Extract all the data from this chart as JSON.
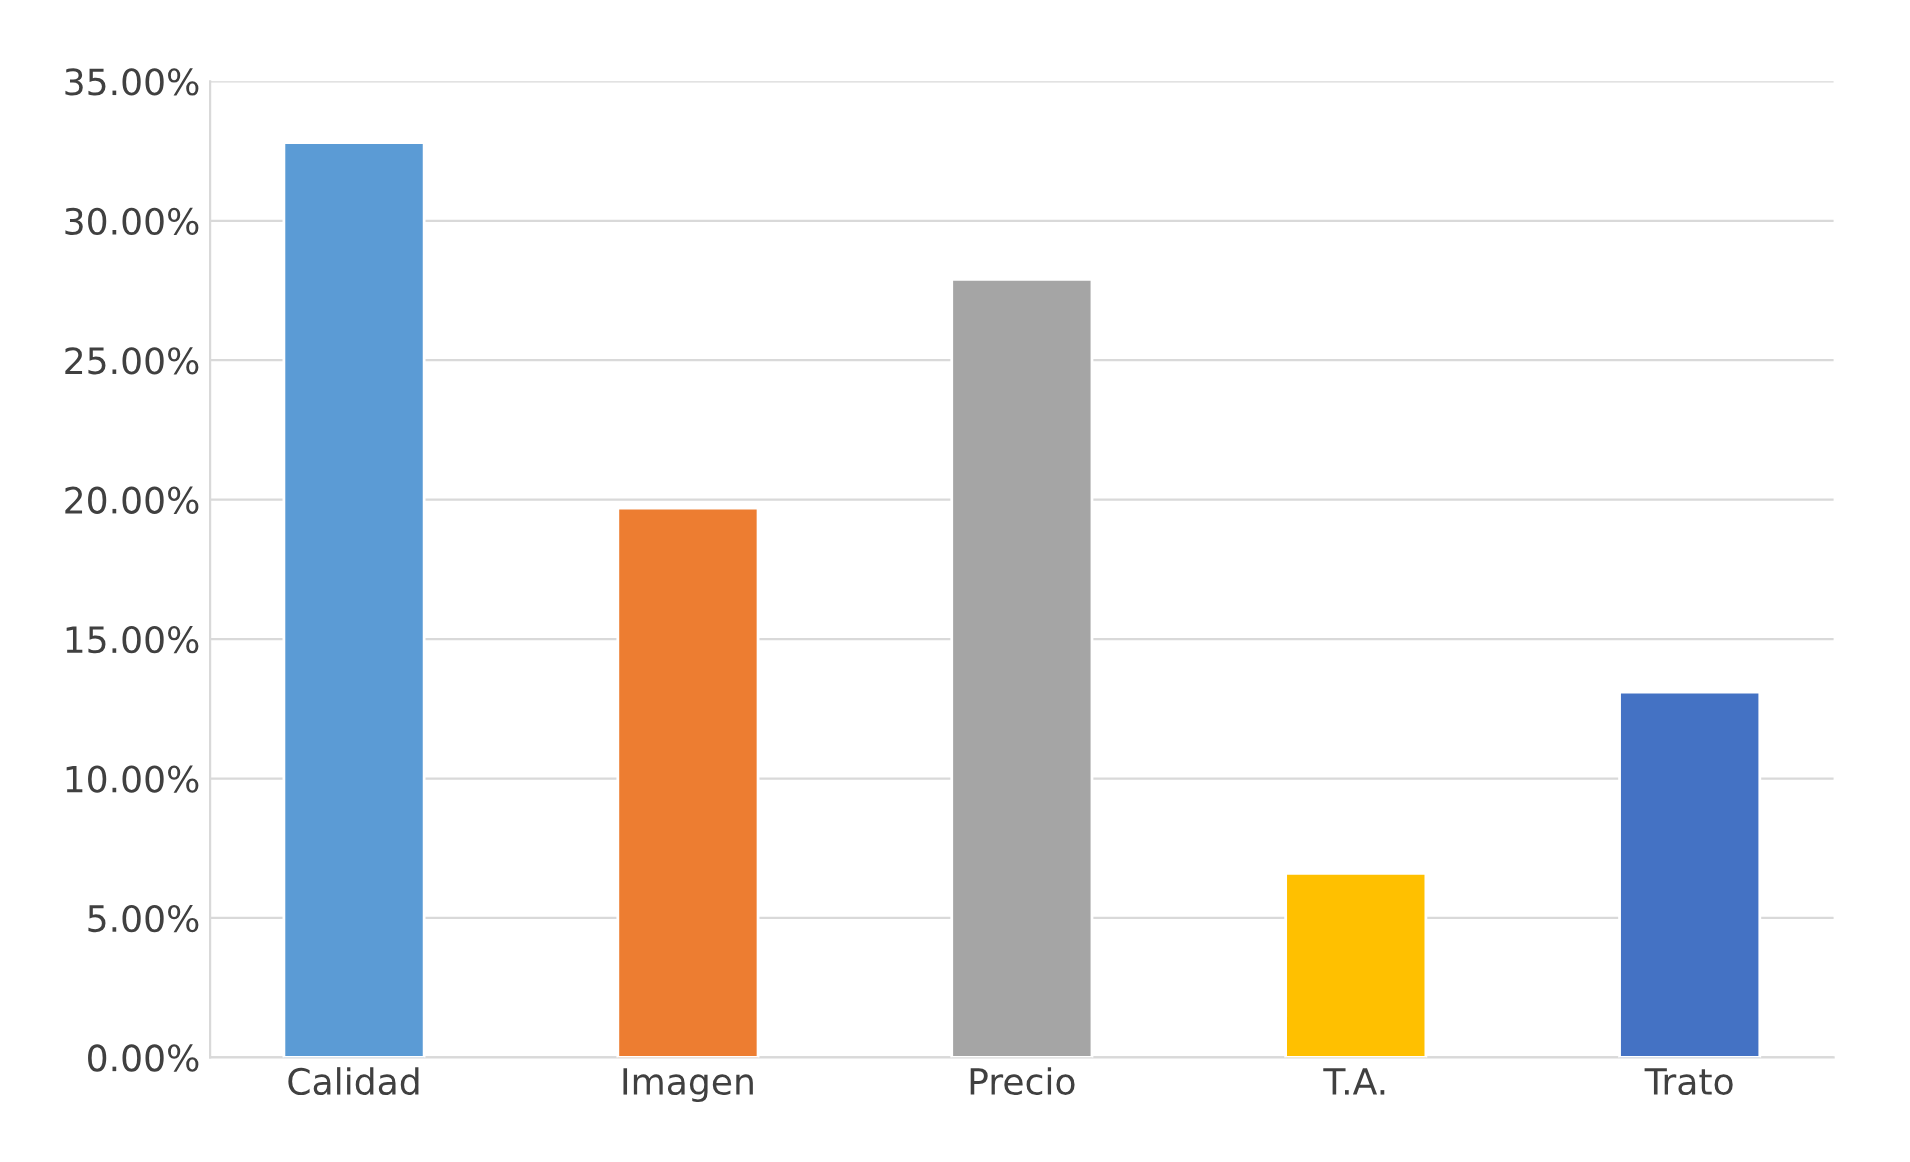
{
  "chart_data": {
    "type": "bar",
    "categories": [
      "Calidad",
      "Imagen",
      "Precio",
      "T.A.",
      "Trato"
    ],
    "values": [
      32.8,
      19.7,
      27.9,
      6.6,
      13.1
    ],
    "colors": [
      "#5b9bd5",
      "#ed7d31",
      "#a5a5a5",
      "#ffc000",
      "#4472c4"
    ],
    "ylim": [
      0,
      35
    ],
    "yticks": [
      {
        "value": 0,
        "label": "0.00%"
      },
      {
        "value": 5,
        "label": "5.00%"
      },
      {
        "value": 10,
        "label": "10.00%"
      },
      {
        "value": 15,
        "label": "15.00%"
      },
      {
        "value": 20,
        "label": "20.00%"
      },
      {
        "value": 25,
        "label": "25.00%"
      },
      {
        "value": 30,
        "label": "30.00%"
      },
      {
        "value": 35,
        "label": "35.00%"
      }
    ],
    "grid": "y"
  }
}
